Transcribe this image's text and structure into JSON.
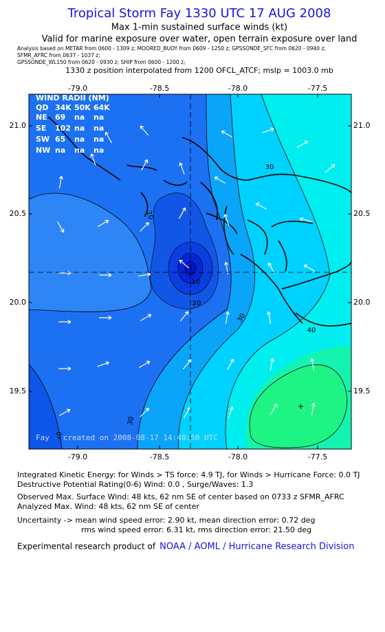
{
  "header": {
    "title": "Tropical Storm Fay 1330 UTC 17 AUG 2008",
    "subtitle": "Max 1-min sustained surface winds (kt)",
    "valid": "Valid for marine exposure over water, open terrain exposure over land",
    "analysis": [
      "Analysis based on   METAR from 0600 - 1309 z;   MOORED_BUOY from 0609 - 1250 z;   GPSSONDE_SFC from 0620 - 0940 z;",
      "SFMR_AFRC from 0637 - 1037 z;",
      "GPSSONDE_WL150 from 0620 - 0930 z;  SHIP from 0600 - 1200 z;"
    ],
    "position": "1330 z position interpolated from 1200 OFCL_ATCF; mslp = 1003.0 mb"
  },
  "map": {
    "lon_labels": [
      "-79.0",
      "-78.5",
      "-78.0",
      "-77.5"
    ],
    "lat_labels": [
      "21.0",
      "20.5",
      "20.0",
      "19.5"
    ],
    "contour_labels": [
      "20",
      "10",
      "20",
      "30",
      "30",
      "30",
      "40",
      "10"
    ],
    "credit": "Fay - created on 2008-08-17 14:48:50 UTC"
  },
  "wind_radii": {
    "title": "WIND RADII (NM)",
    "header": [
      "QD",
      "34K",
      "50K",
      "64K"
    ],
    "rows": [
      [
        "NE",
        "69",
        "na",
        "na"
      ],
      [
        "SE",
        "102",
        "na",
        "na"
      ],
      [
        "SW",
        "65",
        "na",
        "na"
      ],
      [
        "NW",
        "na",
        "na",
        "na"
      ]
    ]
  },
  "footer": {
    "lines": [
      "Integrated Kinetic Energy:  for Winds > TS force: 4.9 TJ,  for Winds > Hurricane Force: 0.0 TJ",
      "Destructive Potential Rating(0-6)   Wind: 0.0 , Surge/Waves: 1.3",
      "Observed Max. Surface Wind: 48 kts, 62 nm SE of center based on 0733 z SFMR_AFRC",
      "Analyzed Max. Wind: 48 kts, 62 nm SE of center",
      "Uncertainty -> mean wind speed error: 2.90 kt,   mean direction error: 0.72 deg",
      "rms wind speed error: 6.31 kt,   rms direction error: 21.50 deg"
    ],
    "product": "Experimental research product of",
    "link": "NOAA / AOML / Hurricane Research Division"
  }
}
